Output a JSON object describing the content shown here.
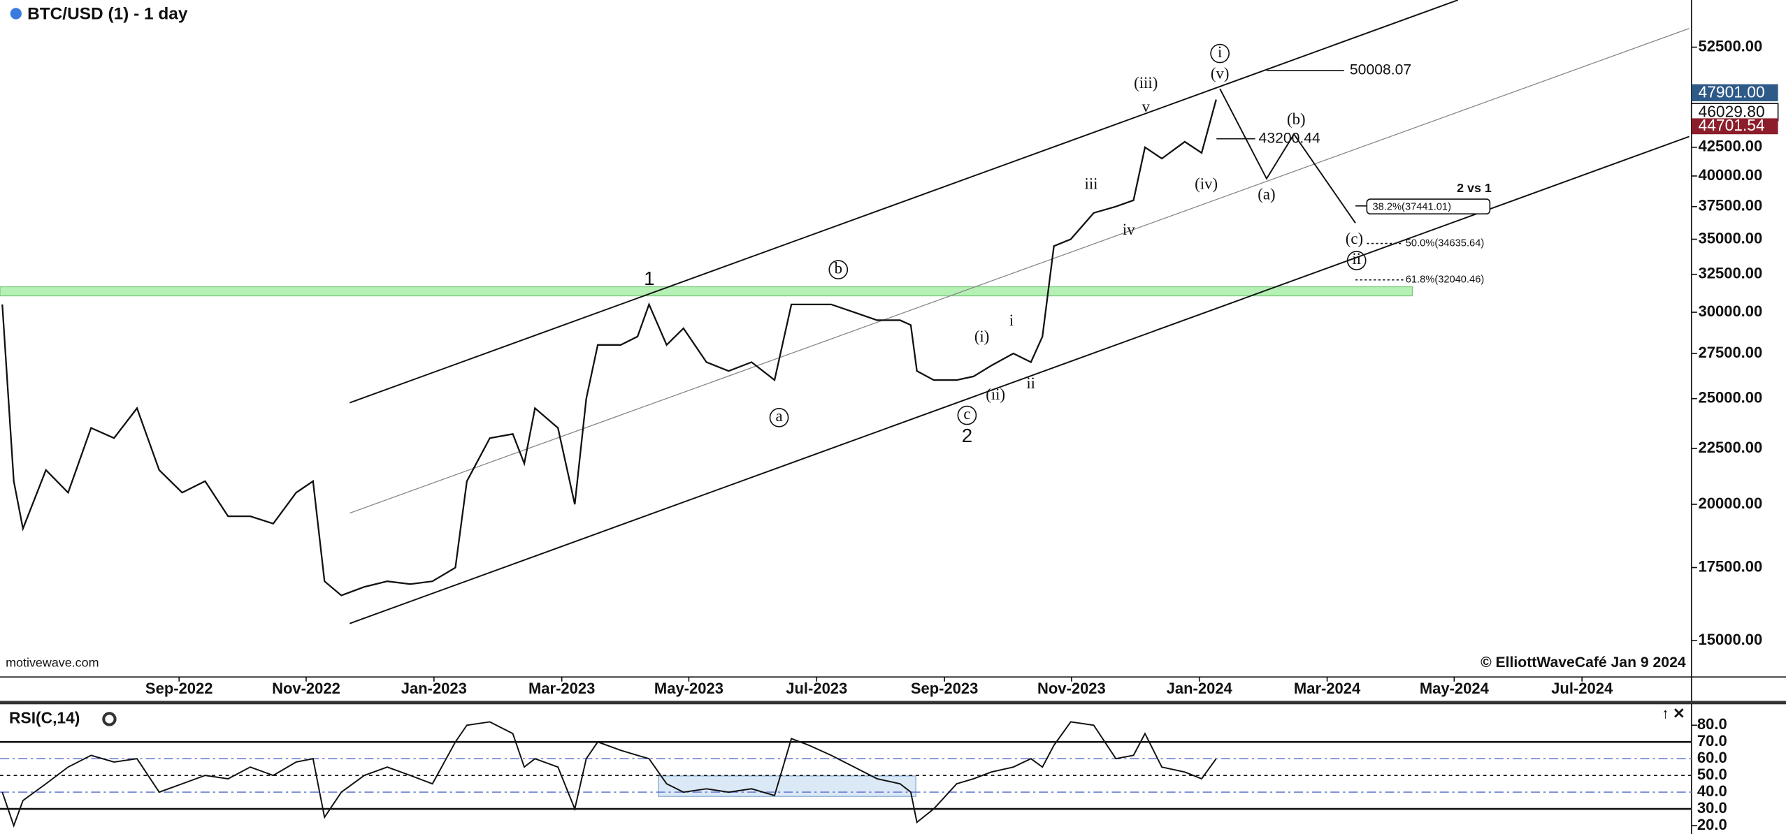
{
  "chart_data": [
    {
      "type": "line",
      "title": "BTC/USD (1) - 1 day",
      "log_y": true,
      "color": "#111111",
      "xlim": [
        2022.433,
        2024.643
      ],
      "ylim": [
        13890,
        58000
      ],
      "xticks": [
        {
          "value": 2022.667,
          "label": "Sep-2022"
        },
        {
          "value": 2022.833,
          "label": "Nov-2022"
        },
        {
          "value": 2023.0,
          "label": "Jan-2023"
        },
        {
          "value": 2023.167,
          "label": "Mar-2023"
        },
        {
          "value": 2023.333,
          "label": "May-2023"
        },
        {
          "value": 2023.5,
          "label": "Jul-2023"
        },
        {
          "value": 2023.667,
          "label": "Sep-2023"
        },
        {
          "value": 2023.833,
          "label": "Nov-2023"
        },
        {
          "value": 2024.0,
          "label": "Jan-2024"
        },
        {
          "value": 2024.167,
          "label": "Mar-2024"
        },
        {
          "value": 2024.333,
          "label": "May-2024"
        },
        {
          "value": 2024.5,
          "label": "Jul-2024"
        }
      ],
      "yticks": [
        {
          "value": 52500,
          "label": "52500.00"
        },
        {
          "value": 42500,
          "label": "42500.00"
        },
        {
          "value": 40000,
          "label": "40000.00"
        },
        {
          "value": 37500,
          "label": "37500.00"
        },
        {
          "value": 35000,
          "label": "35000.00"
        },
        {
          "value": 32500,
          "label": "32500.00"
        },
        {
          "value": 30000,
          "label": "30000.00"
        },
        {
          "value": 27500,
          "label": "27500.00"
        },
        {
          "value": 25000,
          "label": "25000.00"
        },
        {
          "value": 22500,
          "label": "22500.00"
        },
        {
          "value": 20000,
          "label": "20000.00"
        },
        {
          "value": 17500,
          "label": "17500.00"
        },
        {
          "value": 15000,
          "label": "15000.00"
        }
      ],
      "x": [
        2022.436,
        2022.451,
        2022.463,
        2022.493,
        2022.522,
        2022.552,
        2022.582,
        2022.612,
        2022.641,
        2022.671,
        2022.701,
        2022.731,
        2022.76,
        2022.79,
        2022.82,
        2022.842,
        2022.857,
        2022.879,
        2022.909,
        2022.939,
        2022.969,
        2022.998,
        2023.028,
        2023.043,
        2023.073,
        2023.103,
        2023.118,
        2023.132,
        2023.162,
        2023.184,
        2023.199,
        2023.214,
        2023.244,
        2023.266,
        2023.281,
        2023.304,
        2023.326,
        2023.356,
        2023.385,
        2023.415,
        2023.445,
        2023.467,
        2023.49,
        2023.519,
        2023.549,
        2023.579,
        2023.609,
        2023.623,
        2023.631,
        2023.653,
        2023.683,
        2023.705,
        2023.728,
        2023.757,
        2023.78,
        2023.795,
        2023.81,
        2023.832,
        2023.862,
        2023.891,
        2023.914,
        2023.929,
        2023.951,
        2023.981,
        2024.003,
        2024.022
      ],
      "values": [
        30500,
        21000,
        19000,
        21500,
        20500,
        23500,
        23000,
        24500,
        21500,
        20500,
        21000,
        19500,
        19500,
        19200,
        20500,
        21000,
        17000,
        16500,
        16800,
        17000,
        16900,
        17000,
        17500,
        21000,
        23000,
        23200,
        21800,
        24500,
        23500,
        20000,
        25000,
        28000,
        28000,
        28500,
        30500,
        28000,
        29000,
        27000,
        26500,
        27000,
        26000,
        30500,
        30500,
        30500,
        30000,
        29500,
        29500,
        29200,
        26500,
        26000,
        26000,
        26200,
        26800,
        27500,
        27000,
        28500,
        34500,
        35000,
        37000,
        37500,
        38000,
        42500,
        41500,
        43000,
        42000,
        47000
      ],
      "annotations": [
        "1",
        "b",
        "a",
        "c",
        "2",
        "(i)",
        "(ii)",
        "i",
        "ii",
        "iii",
        "iv",
        "v",
        "(iii)",
        "(iv)",
        "(v)",
        "i",
        "(a)",
        "(b)",
        "(c)",
        "ii"
      ],
      "fib_labels": [
        "50008.07",
        "43200.44",
        "38.2%(37441.01)",
        "50.0%(34635.64)",
        "61.8%(32040.46)",
        "2 vs 1"
      ],
      "price_labels": [
        "47901.00",
        "46029.80",
        "44701.54"
      ],
      "watermark": "motivewave.com",
      "copyright": "© ElliottWaveCafé Jan 9 2024"
    },
    {
      "type": "line",
      "title": "RSI(C,14)",
      "color": "#111111",
      "ylim": [
        15,
        92.5
      ],
      "yticks": [
        {
          "value": 80,
          "label": "80.0"
        },
        {
          "value": 70,
          "label": "70.0"
        },
        {
          "value": 60,
          "label": "60.0"
        },
        {
          "value": 50,
          "label": "50.0"
        },
        {
          "value": 40,
          "label": "40.0"
        },
        {
          "value": 30,
          "label": "30.0"
        },
        {
          "value": 20,
          "label": "20.0"
        }
      ],
      "values": [
        40,
        20,
        35,
        45,
        55,
        62,
        58,
        60,
        40,
        45,
        50,
        48,
        55,
        50,
        58,
        60,
        25,
        40,
        50,
        55,
        50,
        45,
        70,
        80,
        82,
        75,
        55,
        60,
        55,
        30,
        60,
        70,
        65,
        62,
        60,
        45,
        40,
        42,
        40,
        42,
        38,
        72,
        68,
        62,
        55,
        48,
        45,
        40,
        22,
        30,
        45,
        48,
        52,
        55,
        60,
        55,
        68,
        82,
        80,
        60,
        62,
        75,
        55,
        52,
        48,
        60
      ]
    }
  ]
}
